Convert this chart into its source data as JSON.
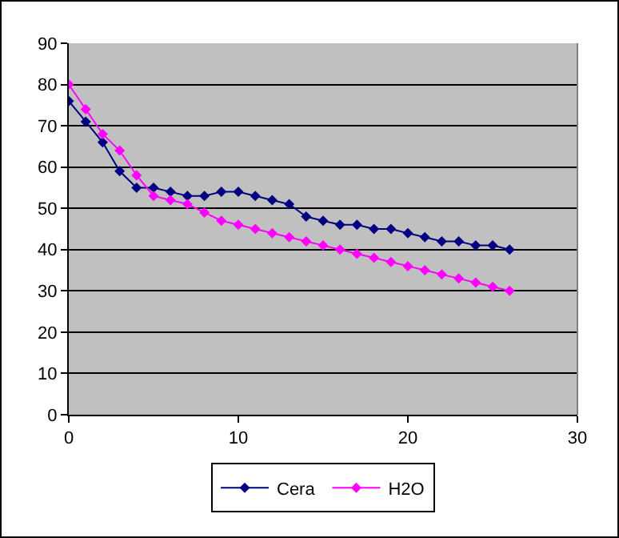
{
  "chart_data": {
    "type": "line",
    "x": [
      0,
      1,
      2,
      3,
      4,
      5,
      6,
      7,
      8,
      9,
      10,
      11,
      12,
      13,
      14,
      15,
      16,
      17,
      18,
      19,
      20,
      21,
      22,
      23,
      24,
      25,
      26
    ],
    "series": [
      {
        "name": "Cera",
        "color": "#000080",
        "values": [
          76,
          71,
          66,
          59,
          55,
          55,
          54,
          53,
          53,
          54,
          54,
          53,
          52,
          51,
          48,
          47,
          46,
          46,
          45,
          45,
          44,
          43,
          42,
          42,
          41,
          41,
          40
        ]
      },
      {
        "name": "H2O",
        "color": "#ff00ff",
        "values": [
          80,
          74,
          68,
          64,
          58,
          53,
          52,
          51,
          49,
          47,
          46,
          45,
          44,
          43,
          42,
          41,
          40,
          39,
          38,
          37,
          36,
          35,
          34,
          33,
          32,
          31,
          30
        ]
      }
    ],
    "xlim": [
      0,
      30
    ],
    "xticks": [
      0,
      10,
      20,
      30
    ],
    "ylim": [
      0,
      90
    ],
    "yticks": [
      0,
      10,
      20,
      30,
      40,
      50,
      60,
      70,
      80,
      90
    ],
    "grid": "y",
    "legend": "bottom",
    "marker": "diamond",
    "line_style": "solid"
  }
}
